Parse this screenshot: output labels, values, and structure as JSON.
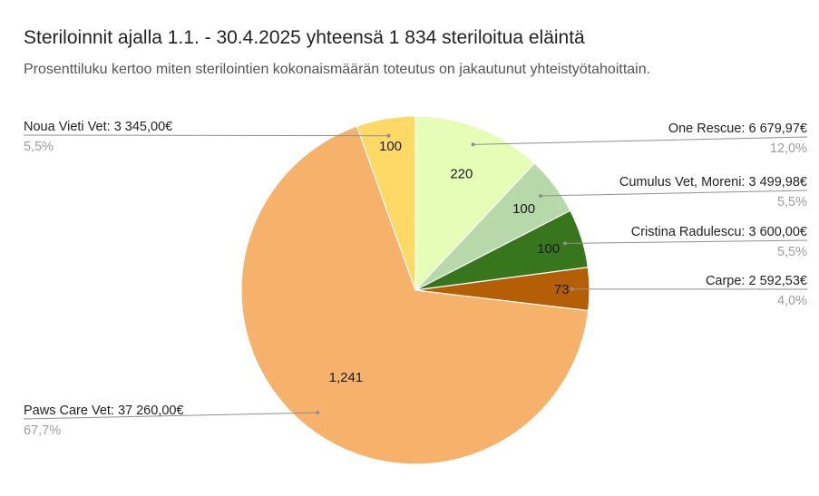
{
  "chart_data": {
    "type": "pie",
    "title": "Steriloinnit ajalla 1.1. - 30.4.2025 yhteensä 1 834 steriloitua eläintä",
    "subtitle": "Prosenttiluku kertoo miten sterilointien kokonaismäärän toteutus on jakautunut yhteistyötahoittain.",
    "slices": [
      {
        "name": "One Rescue: 6 679,97€",
        "value": 220,
        "value_label": "220",
        "percent_label": "12,0%",
        "color": "#e6fdb7"
      },
      {
        "name": "Cumulus Vet, Moreni: 3 499,98€",
        "value": 100,
        "value_label": "100",
        "percent_label": "5,5%",
        "color": "#b7d8a8"
      },
      {
        "name": "Cristina Radulescu: 3 600,00€",
        "value": 100,
        "value_label": "100",
        "percent_label": "5,5%",
        "color": "#38761d"
      },
      {
        "name": "Carpe: 2 592,53€",
        "value": 73,
        "value_label": "73",
        "percent_label": "4,0%",
        "color": "#b45f06"
      },
      {
        "name": "Paws Care Vet: 37 260,00€",
        "value": 1241,
        "value_label": "1,241",
        "percent_label": "67,7%",
        "color": "#f6b26b"
      },
      {
        "name": "Noua Vieti Vet: 3 345,00€",
        "value": 100,
        "value_label": "100",
        "percent_label": "5,5%",
        "color": "#ffd966"
      }
    ],
    "start_angle": "12 o'clock",
    "direction": "clockwise",
    "legend": "none"
  }
}
